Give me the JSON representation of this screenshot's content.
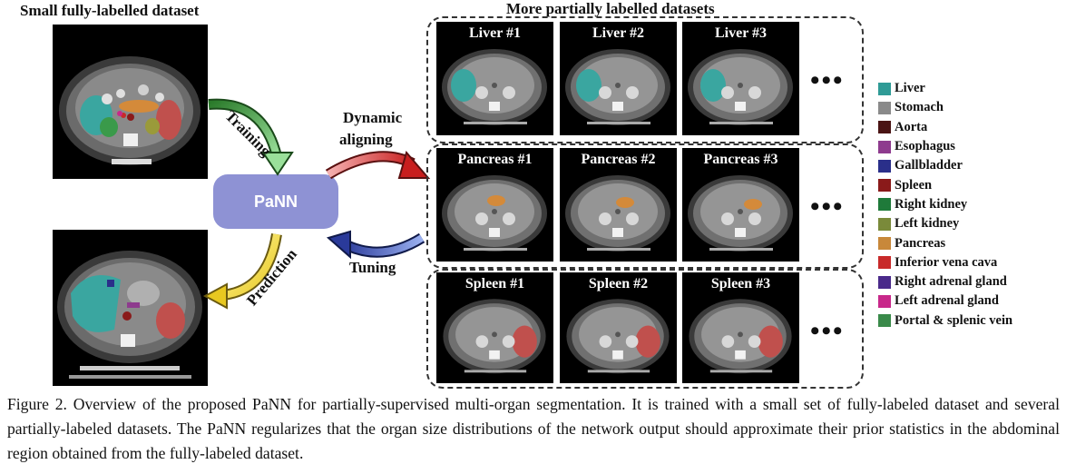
{
  "left_title": "Small fully-labelled dataset",
  "right_title": "More partially labelled datasets",
  "pann_label": "PaNN",
  "arrow_labels": {
    "training": "Training",
    "prediction": "Prediction",
    "dynamic": "Dynamic",
    "aligning": "aligning",
    "tuning": "Tuning"
  },
  "ellipsis": "•••",
  "rows": [
    {
      "name": "liver",
      "labels": [
        "Liver #1",
        "Liver #2",
        "Liver #3"
      ],
      "color": "#3aa6a0"
    },
    {
      "name": "pancreas",
      "labels": [
        "Pancreas #1",
        "Pancreas #2",
        "Pancreas #3"
      ],
      "color": "#d48a3a"
    },
    {
      "name": "spleen",
      "labels": [
        "Spleen #1",
        "Spleen #2",
        "Spleen #3"
      ],
      "color": "#c0504d"
    }
  ],
  "legend": [
    {
      "label": "Liver",
      "color": "#2f9b96"
    },
    {
      "label": "Stomach",
      "color": "#8a8a8a"
    },
    {
      "label": "Aorta",
      "color": "#4a1414"
    },
    {
      "label": "Esophagus",
      "color": "#8e3b8e"
    },
    {
      "label": "Gallbladder",
      "color": "#2a2f8a"
    },
    {
      "label": "Spleen",
      "color": "#8a1a1a"
    },
    {
      "label": "Right kidney",
      "color": "#1f7a3a"
    },
    {
      "label": "Left kidney",
      "color": "#7a8a3a"
    },
    {
      "label": "Pancreas",
      "color": "#c8883a"
    },
    {
      "label": "Inferior vena cava",
      "color": "#c82a2a"
    },
    {
      "label": "Right adrenal gland",
      "color": "#4a2a8a"
    },
    {
      "label": "Left adrenal gland",
      "color": "#c8288a"
    },
    {
      "label": "Portal & splenic vein",
      "color": "#3a8a4a"
    }
  ],
  "caption": "Figure 2. Overview of the proposed PaNN for partially-supervised multi-organ segmentation. It is trained with a small set of fully-labeled dataset and several partially-labeled datasets. The PaNN regularizes that the organ size distributions of the network output should approximate their prior statistics in the abdominal region obtained from the fully-labeled dataset."
}
